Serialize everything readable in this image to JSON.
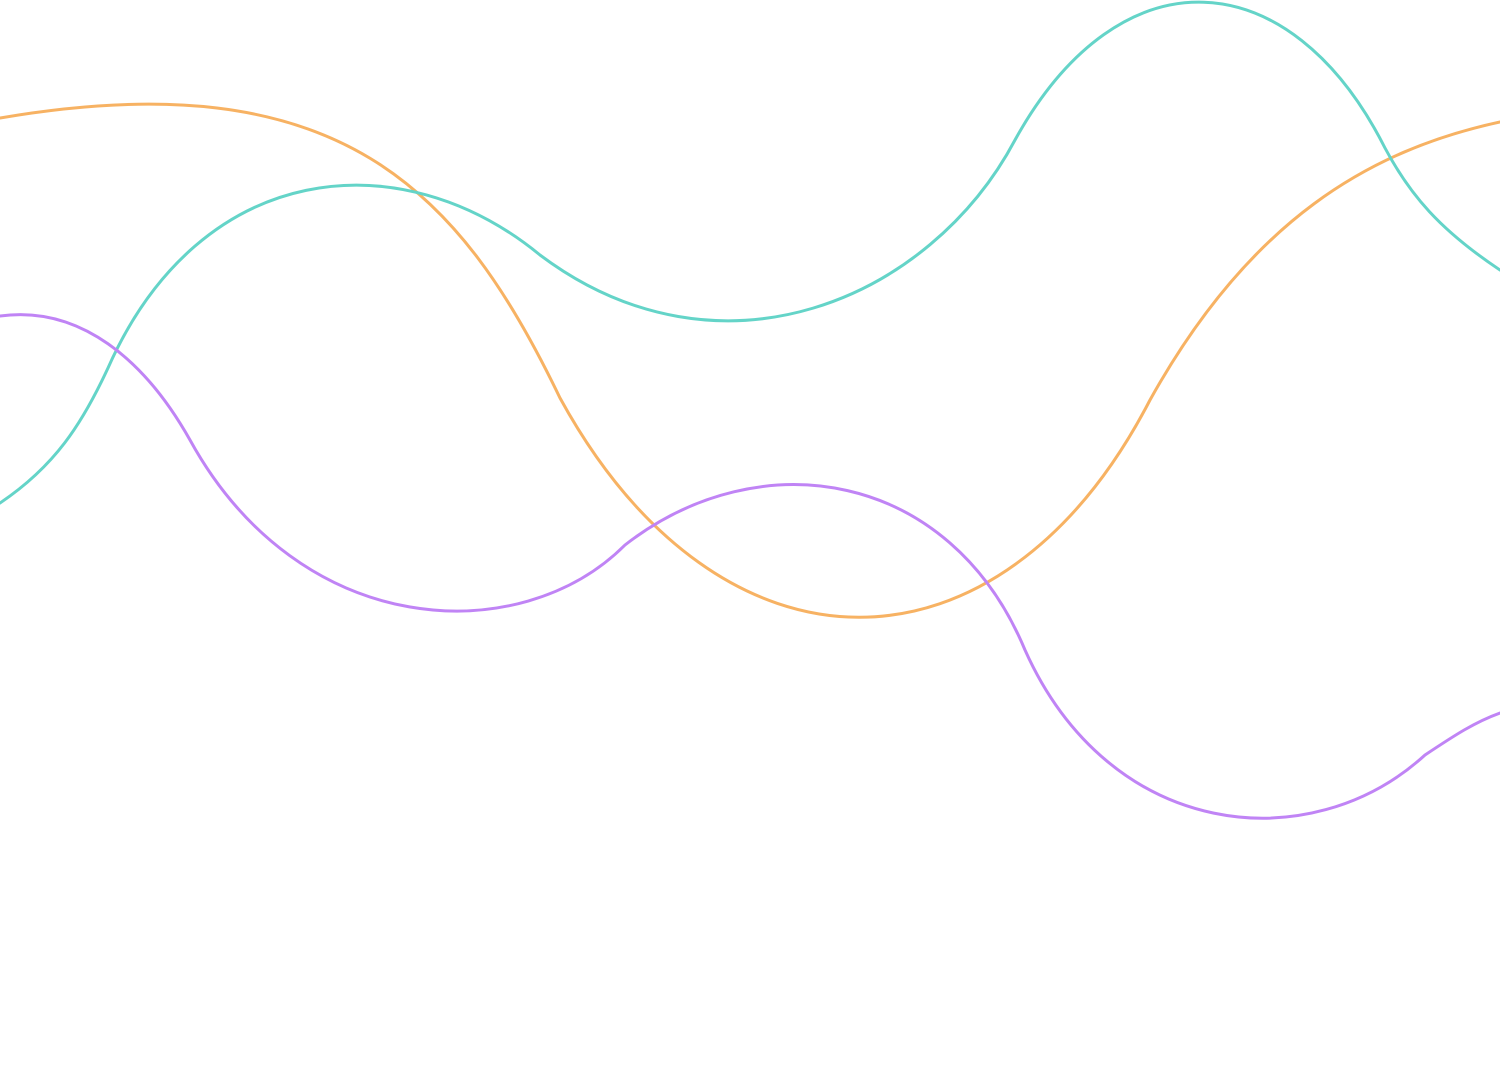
{
  "background": "#ffffff",
  "decoration": {
    "kind": "decorative wavy line background",
    "lines": [
      {
        "id": "orange",
        "color": "#f7b263"
      },
      {
        "id": "teal",
        "color": "#64d4c8"
      },
      {
        "id": "purple",
        "color": "#c084f5"
      }
    ]
  }
}
